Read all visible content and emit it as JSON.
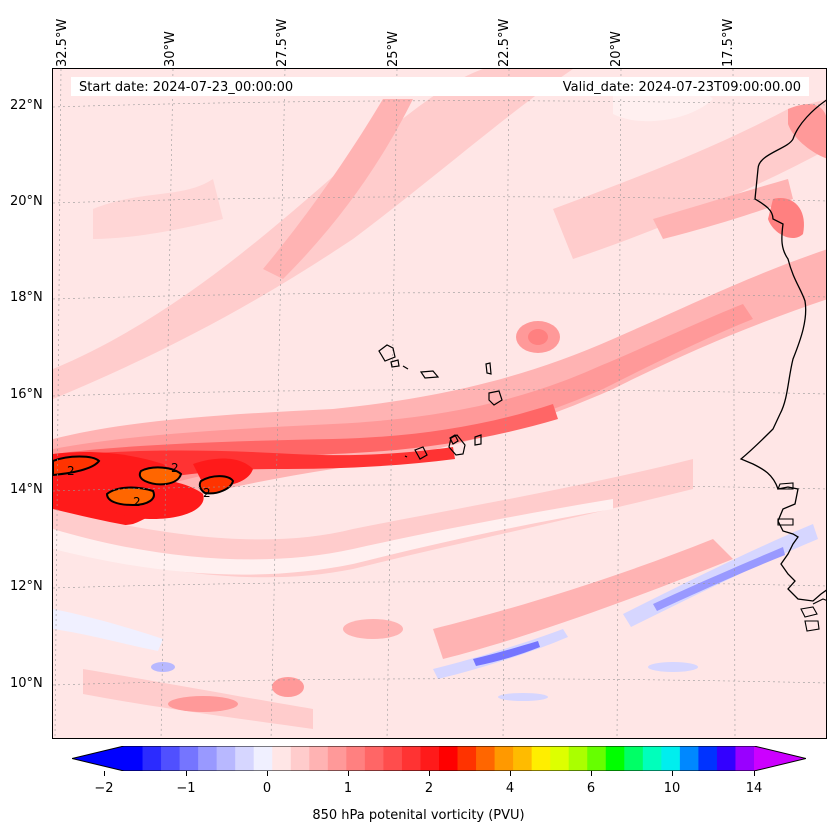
{
  "map": {
    "start_date": "Start date: 2024-07-23_00:00:00",
    "valid_date": "Valid_date: 2024-07-23T09:00:00.00",
    "lon_labels": [
      "32.5°W",
      "30°W",
      "27.5°W",
      "25°W",
      "22.5°W",
      "20°W",
      "17.5°W"
    ],
    "lat_labels": [
      "22°N",
      "20°N",
      "18°N",
      "16°N",
      "14°N",
      "12°N",
      "10°N"
    ],
    "contour_labels": [
      "2",
      "2",
      "2",
      "2"
    ]
  },
  "colorbar": {
    "title": "850 hPa potenital vorticity (PVU)",
    "ticks": [
      "−2",
      "−1",
      "0",
      "1",
      "2",
      "4",
      "6",
      "10",
      "14"
    ],
    "colors": [
      "#0000ff",
      "#2b2bff",
      "#5050ff",
      "#7575ff",
      "#9999ff",
      "#b8b8ff",
      "#d6d6ff",
      "#f0f0ff",
      "#ffe6e6",
      "#ffcccc",
      "#ffb3b3",
      "#ff9999",
      "#ff8080",
      "#ff6666",
      "#ff4d4d",
      "#ff3333",
      "#ff1a1a",
      "#ff0000",
      "#ff3300",
      "#ff6600",
      "#ff9900",
      "#ffbb00",
      "#ffee00",
      "#ddff00",
      "#aaff00",
      "#66ff00",
      "#00ff00",
      "#00ff66",
      "#00ffbb",
      "#00eeee",
      "#0088ff",
      "#0033ff",
      "#3300ff",
      "#9900ff"
    ],
    "under_color": "#0000ff",
    "over_color": "#cc00ff"
  }
}
